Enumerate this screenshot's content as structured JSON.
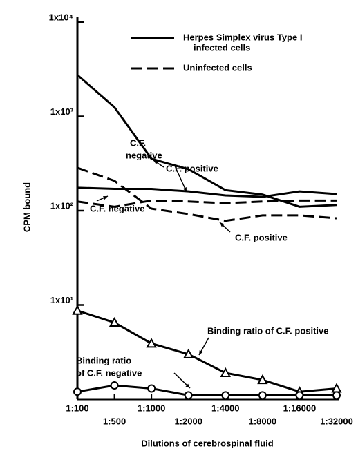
{
  "chart_data": {
    "type": "line",
    "y_label": "CPM bound",
    "x_label": "Dilutions of cerebrospinal fluid",
    "categories": [
      "1:100",
      "1:500",
      "1:1000",
      "1:2000",
      "1:4000",
      "1:8000",
      "1:16000",
      "1:32000"
    ],
    "ylim": [
      1,
      10000
    ],
    "log_y": true,
    "yticks": [
      {
        "value": 10,
        "label": "1x10¹"
      },
      {
        "value": 100,
        "label": "1x10²"
      },
      {
        "value": 1000,
        "label": "1x10³"
      },
      {
        "value": 10000,
        "label": "1x10⁴"
      }
    ],
    "color": "#000000",
    "legend": [
      {
        "label": [
          "Herpes Simplex virus Type I",
          "infected cells"
        ],
        "dash": "solid"
      },
      {
        "label": [
          "Uninfected cells"
        ],
        "dash": "dashed"
      }
    ],
    "series": [
      {
        "dash": "solid",
        "marker": null,
        "values": [
          2750,
          1250,
          355,
          275,
          165,
          148,
          110,
          115
        ]
      },
      {
        "dash": "solid",
        "marker": null,
        "values": [
          175,
          170,
          170,
          160,
          145,
          140,
          160,
          150
        ]
      },
      {
        "dash": "dashed",
        "marker": null,
        "values": [
          285,
          207,
          105,
          92,
          78,
          89,
          89,
          83
        ]
      },
      {
        "dash": "dashed",
        "marker": null,
        "values": [
          125,
          110,
          128,
          125,
          120,
          125,
          128,
          128
        ]
      },
      {
        "dash": "solid",
        "marker": "triangle",
        "values": [
          8.7,
          6.5,
          3.9,
          3.0,
          1.9,
          1.6,
          1.2,
          1.3
        ]
      },
      {
        "dash": "solid",
        "marker": "circle",
        "values": [
          1.2,
          1.4,
          1.3,
          1.1,
          1.1,
          1.1,
          1.1,
          1.1
        ]
      }
    ],
    "annotations": [
      [
        "C.F. positive"
      ],
      [
        "C.F.",
        "negative"
      ],
      [
        "C.F. negative"
      ],
      [
        "C.F. positive"
      ],
      [
        "Binding ratio of C.F. positive"
      ],
      [
        "Binding ratio",
        "of C.F. negative"
      ]
    ]
  }
}
